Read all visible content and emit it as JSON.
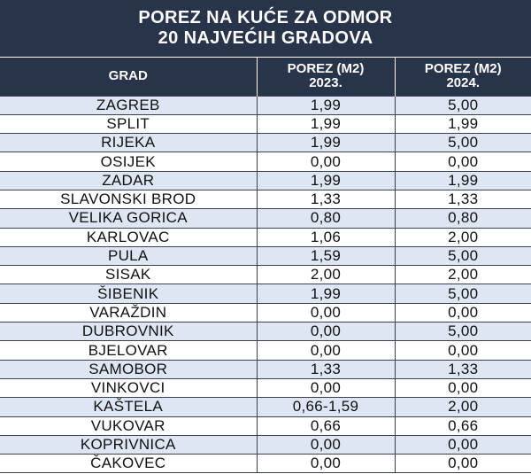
{
  "title": {
    "line1": "POREZ NA KUĆE ZA ODMOR",
    "line2": "20 NAJVEĆIH GRADOVA"
  },
  "headers": {
    "city": "GRAD",
    "tax2023_line1": "POREZ (M2)",
    "tax2023_line2": "2023.",
    "tax2024_line1": "POREZ (M2)",
    "tax2024_line2": "2024."
  },
  "rows": [
    {
      "city": "ZAGREB",
      "y2023": "1,99",
      "y2024": "5,00"
    },
    {
      "city": "SPLIT",
      "y2023": "1,99",
      "y2024": "1,99"
    },
    {
      "city": "RIJEKA",
      "y2023": "1,99",
      "y2024": "5,00"
    },
    {
      "city": "OSIJEK",
      "y2023": "0,00",
      "y2024": "0,00"
    },
    {
      "city": "ZADAR",
      "y2023": "1,99",
      "y2024": "1,99"
    },
    {
      "city": "SLAVONSKI BROD",
      "y2023": "1,33",
      "y2024": "1,33"
    },
    {
      "city": "VELIKA GORICA",
      "y2023": "0,80",
      "y2024": "0,80"
    },
    {
      "city": "KARLOVAC",
      "y2023": "1,06",
      "y2024": "2,00"
    },
    {
      "city": "PULA",
      "y2023": "1,59",
      "y2024": "5,00"
    },
    {
      "city": "SISAK",
      "y2023": "2,00",
      "y2024": "2,00"
    },
    {
      "city": "ŠIBENIK",
      "y2023": "1,99",
      "y2024": "5,00"
    },
    {
      "city": "VARAŽDIN",
      "y2023": "0,00",
      "y2024": "0,00"
    },
    {
      "city": "DUBROVNIK",
      "y2023": "0,00",
      "y2024": "5,00"
    },
    {
      "city": "BJELOVAR",
      "y2023": "0,00",
      "y2024": "0,00"
    },
    {
      "city": "SAMOBOR",
      "y2023": "1,33",
      "y2024": "1,33"
    },
    {
      "city": "VINKOVCI",
      "y2023": "0,00",
      "y2024": "0,00"
    },
    {
      "city": "KAŠTELA",
      "y2023": "0,66-1,59",
      "y2024": "2,00"
    },
    {
      "city": "VUKOVAR",
      "y2023": "0,66",
      "y2024": "0,66"
    },
    {
      "city": "KOPRIVNICA",
      "y2023": "0,00",
      "y2024": "0,00"
    },
    {
      "city": "ČAKOVEC",
      "y2023": "0,00",
      "y2024": "0,00"
    }
  ],
  "colors": {
    "header_bg": "#27344a",
    "row_alt_bg": "#dee6f3",
    "row_bg": "#ffffff"
  }
}
